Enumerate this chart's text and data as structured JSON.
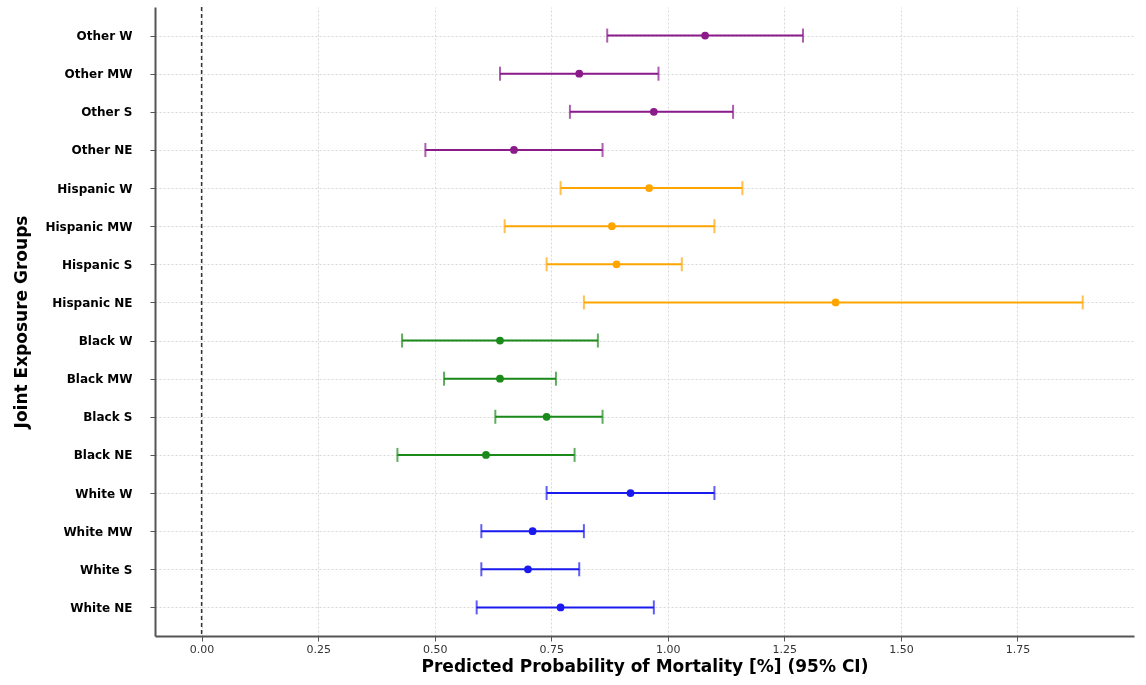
{
  "chart_data": {
    "type": "scatter",
    "orientation": "horizontal",
    "xlabel": "Predicted Probability of Mortality [%] (95% CI)",
    "ylabel": "Joint Exposure Groups",
    "categories": [
      "Other W",
      "Other MW",
      "Other S",
      "Other NE",
      "Hispanic W",
      "Hispanic MW",
      "Hispanic S",
      "Hispanic NE",
      "Black W",
      "Black MW",
      "Black S",
      "Black  NE",
      "White W",
      "White MW",
      "White S",
      "White NE"
    ],
    "values": [
      1.08,
      0.81,
      0.97,
      0.67,
      0.96,
      0.88,
      0.89,
      1.36,
      0.64,
      0.64,
      0.74,
      0.61,
      0.92,
      0.71,
      0.7,
      0.77
    ],
    "errors": [
      [
        0.87,
        1.29
      ],
      [
        0.64,
        0.98
      ],
      [
        0.79,
        1.14
      ],
      [
        0.48,
        0.86
      ],
      [
        0.77,
        1.16
      ],
      [
        0.65,
        1.1
      ],
      [
        0.74,
        1.03
      ],
      [
        0.82,
        1.89
      ],
      [
        0.43,
        0.85
      ],
      [
        0.52,
        0.76
      ],
      [
        0.63,
        0.86
      ],
      [
        0.42,
        0.8
      ],
      [
        0.74,
        1.1
      ],
      [
        0.6,
        0.82
      ],
      [
        0.6,
        0.81
      ],
      [
        0.59,
        0.97
      ]
    ],
    "colors": [
      "#8b1a8b",
      "#8b1a8b",
      "#8b1a8b",
      "#8b1a8b",
      "#ffa500",
      "#ffa500",
      "#ffa500",
      "#ffa500",
      "#1a8a1a",
      "#1a8a1a",
      "#1a8a1a",
      "#1a8a1a",
      "#1a1aee",
      "#1a1aee",
      "#1a1aee",
      "#1a1aee"
    ],
    "xlim": [
      -0.1,
      2.0
    ],
    "xticks": [
      {
        "value": 0,
        "label": "0.00"
      },
      {
        "value": 0.25,
        "label": "0.25"
      },
      {
        "value": 0.5,
        "label": "0.50"
      },
      {
        "value": 0.75,
        "label": "0.75"
      },
      {
        "value": 1,
        "label": "1.00"
      },
      {
        "value": 1.25,
        "label": "1.25"
      },
      {
        "value": 1.5,
        "label": "1.50"
      },
      {
        "value": 1.75,
        "label": "1.75"
      }
    ],
    "ref_lines": [
      {
        "axis": "x",
        "value": 0,
        "color": "#333333",
        "line_style": "dashed"
      }
    ],
    "grid": true,
    "marker": "circle"
  }
}
